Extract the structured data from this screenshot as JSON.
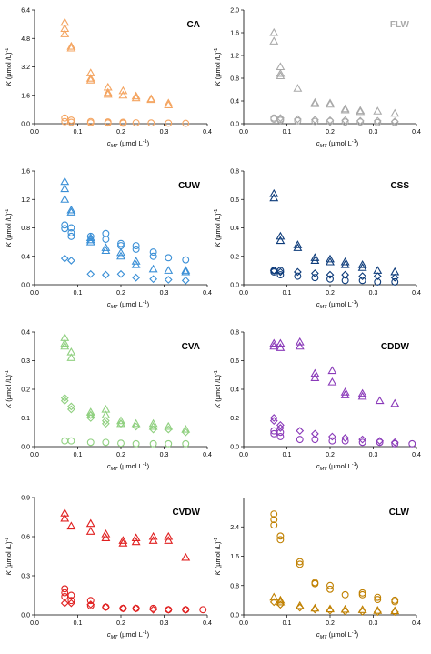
{
  "chart_data": [
    {
      "type": "scatter",
      "title": "CA",
      "title_color": "#000000",
      "ylabel_main": "K",
      "ylabel_unit": " (µmol /L)",
      "ylabel_sup": "-1",
      "xlabel_main": "c",
      "xlabel_sub": "MT",
      "xlabel_unit": " (µmol L",
      "xlabel_sup": "-1",
      "xlabel_close": ")",
      "xlim": [
        0,
        0.4
      ],
      "ylim": [
        0,
        6.4
      ],
      "xticks": [
        "0.0",
        "0.1",
        "0.2",
        "0.3",
        "0.4"
      ],
      "yticks": [
        "0.0",
        "1.6",
        "3.2",
        "4.8",
        "6.4"
      ],
      "series": [
        {
          "marker": "triangle",
          "color": "#f4a460",
          "x": [
            0.07,
            0.07,
            0.07,
            0.085,
            0.085,
            0.13,
            0.13,
            0.13,
            0.17,
            0.17,
            0.17,
            0.205,
            0.205,
            0.235,
            0.235,
            0.27,
            0.27,
            0.31,
            0.31
          ],
          "y": [
            5.7,
            5.35,
            5.05,
            4.35,
            4.25,
            2.85,
            2.55,
            2.45,
            2.05,
            1.75,
            1.65,
            1.85,
            1.6,
            1.55,
            1.45,
            1.4,
            1.35,
            1.15,
            1.05
          ]
        },
        {
          "marker": "circle",
          "color": "#f4a460",
          "x": [
            0.07,
            0.07,
            0.085,
            0.085,
            0.13,
            0.13,
            0.17,
            0.17,
            0.205,
            0.205,
            0.235,
            0.27,
            0.31,
            0.35
          ],
          "y": [
            0.32,
            0.12,
            0.2,
            0.08,
            0.12,
            0.05,
            0.1,
            0.04,
            0.08,
            0.03,
            0.05,
            0.04,
            0.03,
            0.02
          ]
        }
      ]
    },
    {
      "type": "scatter",
      "title": "FLW",
      "title_color": "#aaaaaa",
      "ylabel_main": "K",
      "ylabel_unit": " (µmol /L)",
      "ylabel_sup": "-1",
      "xlabel_main": "c",
      "xlabel_sub": "MT",
      "xlabel_unit": " (µmol L",
      "xlabel_sup": "-1",
      "xlabel_close": ")",
      "xlim": [
        0,
        0.4
      ],
      "ylim": [
        0,
        2.0
      ],
      "xticks": [
        "0.0",
        "0.1",
        "0.2",
        "0.3",
        "0.4"
      ],
      "yticks": [
        "0.0",
        "0.4",
        "0.8",
        "1.2",
        "1.6",
        "2.0"
      ],
      "series": [
        {
          "marker": "triangle",
          "color": "#a9a9a9",
          "x": [
            0.07,
            0.07,
            0.085,
            0.085,
            0.085,
            0.125,
            0.165,
            0.165,
            0.2,
            0.2,
            0.235,
            0.235,
            0.27,
            0.27,
            0.31,
            0.35
          ],
          "y": [
            1.6,
            1.45,
            1.0,
            0.88,
            0.84,
            0.62,
            0.37,
            0.35,
            0.36,
            0.34,
            0.26,
            0.24,
            0.23,
            0.21,
            0.22,
            0.18
          ]
        },
        {
          "marker": "circle",
          "color": "#a9a9a9",
          "x": [
            0.07,
            0.07,
            0.085,
            0.085,
            0.125,
            0.165,
            0.2,
            0.235,
            0.27,
            0.31,
            0.35
          ],
          "y": [
            0.1,
            0.08,
            0.08,
            0.06,
            0.05,
            0.04,
            0.04,
            0.03,
            0.03,
            0.02,
            0.02
          ]
        },
        {
          "marker": "diamond",
          "color": "#a9a9a9",
          "x": [
            0.085,
            0.125,
            0.165,
            0.2,
            0.235,
            0.27,
            0.31,
            0.35
          ],
          "y": [
            0.1,
            0.08,
            0.07,
            0.06,
            0.06,
            0.05,
            0.05,
            0.04
          ]
        }
      ]
    },
    {
      "type": "scatter",
      "title": "CUW",
      "title_color": "#000000",
      "ylabel_main": "K",
      "ylabel_unit": " (µmol /L)",
      "ylabel_sup": "-1",
      "xlabel_main": "c",
      "xlabel_sub": "MT",
      "xlabel_unit": " (µmol L",
      "xlabel_sup": "-1",
      "xlabel_close": ")",
      "xlim": [
        0,
        0.4
      ],
      "ylim": [
        0,
        1.6
      ],
      "xticks": [
        "0.0",
        "0.1",
        "0.2",
        "0.3",
        "0.4"
      ],
      "yticks": [
        "0.0",
        "0.4",
        "0.8",
        "1.2",
        "1.6"
      ],
      "series": [
        {
          "marker": "triangle",
          "color": "#3a8fd6",
          "x": [
            0.07,
            0.07,
            0.07,
            0.085,
            0.085,
            0.13,
            0.13,
            0.13,
            0.165,
            0.165,
            0.2,
            0.2,
            0.235,
            0.235,
            0.275,
            0.31,
            0.35,
            0.35
          ],
          "y": [
            1.45,
            1.35,
            1.2,
            1.05,
            1.02,
            0.66,
            0.63,
            0.6,
            0.52,
            0.48,
            0.45,
            0.4,
            0.33,
            0.28,
            0.22,
            0.2,
            0.2,
            0.18
          ]
        },
        {
          "marker": "circle",
          "color": "#3a8fd6",
          "x": [
            0.07,
            0.07,
            0.085,
            0.085,
            0.085,
            0.13,
            0.165,
            0.165,
            0.2,
            0.2,
            0.235,
            0.235,
            0.275,
            0.275,
            0.31,
            0.35
          ],
          "y": [
            0.84,
            0.79,
            0.8,
            0.73,
            0.68,
            0.68,
            0.72,
            0.64,
            0.58,
            0.55,
            0.55,
            0.5,
            0.46,
            0.4,
            0.38,
            0.35
          ]
        },
        {
          "marker": "diamond",
          "color": "#3a8fd6",
          "x": [
            0.07,
            0.085,
            0.13,
            0.165,
            0.2,
            0.235,
            0.275,
            0.31,
            0.35
          ],
          "y": [
            0.37,
            0.34,
            0.15,
            0.14,
            0.15,
            0.1,
            0.08,
            0.07,
            0.06
          ]
        }
      ]
    },
    {
      "type": "scatter",
      "title": "CSS",
      "title_color": "#000000",
      "ylabel_main": "K",
      "ylabel_unit": " (µmol /L)",
      "ylabel_sup": "-1",
      "xlabel_main": "c",
      "xlabel_sub": "MT",
      "xlabel_unit": " (µmol L",
      "xlabel_sup": "-1",
      "xlabel_close": ")",
      "xlim": [
        0,
        0.4
      ],
      "ylim": [
        0,
        0.8
      ],
      "xticks": [
        "0.0",
        "0.1",
        "0.2",
        "0.3",
        "0.4"
      ],
      "yticks": [
        "0.0",
        "0.2",
        "0.4",
        "0.6",
        "0.8"
      ],
      "series": [
        {
          "marker": "triangle",
          "color": "#0d3b7a",
          "x": [
            0.07,
            0.07,
            0.085,
            0.085,
            0.125,
            0.125,
            0.165,
            0.165,
            0.2,
            0.2,
            0.235,
            0.235,
            0.275,
            0.275,
            0.31,
            0.35
          ],
          "y": [
            0.64,
            0.61,
            0.34,
            0.31,
            0.28,
            0.26,
            0.19,
            0.17,
            0.18,
            0.16,
            0.16,
            0.14,
            0.14,
            0.12,
            0.1,
            0.09
          ]
        },
        {
          "marker": "circle",
          "color": "#0d3b7a",
          "x": [
            0.07,
            0.07,
            0.085,
            0.085,
            0.125,
            0.165,
            0.2,
            0.235,
            0.275,
            0.31,
            0.35
          ],
          "y": [
            0.1,
            0.09,
            0.1,
            0.07,
            0.06,
            0.05,
            0.04,
            0.03,
            0.03,
            0.02,
            0.02
          ]
        },
        {
          "marker": "diamond",
          "color": "#0d3b7a",
          "x": [
            0.07,
            0.085,
            0.125,
            0.165,
            0.2,
            0.235,
            0.275,
            0.31,
            0.35
          ],
          "y": [
            0.1,
            0.09,
            0.09,
            0.08,
            0.07,
            0.07,
            0.06,
            0.06,
            0.05
          ]
        }
      ]
    },
    {
      "type": "scatter",
      "title": "CVA",
      "title_color": "#000000",
      "ylabel_main": "K",
      "ylabel_unit": " (µmol /L)",
      "ylabel_sup": "-1",
      "xlabel_main": "c",
      "xlabel_sub": "MT",
      "xlabel_unit": " (µmol L",
      "xlabel_sup": "-1",
      "xlabel_close": ")",
      "xlim": [
        0,
        0.4
      ],
      "ylim": [
        0,
        0.4
      ],
      "xticks": [
        "0.0",
        "0.1",
        "0.2",
        "0.3",
        "0.4"
      ],
      "yticks": [
        "0.0",
        "0.1",
        "0.2",
        "0.3",
        "0.4"
      ],
      "series": [
        {
          "marker": "triangle",
          "color": "#90d080",
          "x": [
            0.07,
            0.07,
            0.07,
            0.085,
            0.085,
            0.13,
            0.13,
            0.165,
            0.165,
            0.2,
            0.2,
            0.235,
            0.275,
            0.275,
            0.31,
            0.35
          ],
          "y": [
            0.38,
            0.36,
            0.35,
            0.33,
            0.31,
            0.12,
            0.11,
            0.13,
            0.11,
            0.09,
            0.08,
            0.08,
            0.08,
            0.07,
            0.07,
            0.06
          ]
        },
        {
          "marker": "diamond",
          "color": "#90d080",
          "x": [
            0.07,
            0.07,
            0.085,
            0.085,
            0.13,
            0.13,
            0.165,
            0.165,
            0.2,
            0.235,
            0.275,
            0.31,
            0.35
          ],
          "y": [
            0.17,
            0.16,
            0.14,
            0.13,
            0.11,
            0.1,
            0.09,
            0.08,
            0.08,
            0.07,
            0.06,
            0.06,
            0.05
          ]
        },
        {
          "marker": "circle",
          "color": "#90d080",
          "x": [
            0.07,
            0.085,
            0.13,
            0.165,
            0.2,
            0.235,
            0.275,
            0.31,
            0.35
          ],
          "y": [
            0.02,
            0.02,
            0.015,
            0.015,
            0.012,
            0.01,
            0.01,
            0.01,
            0.01
          ]
        }
      ]
    },
    {
      "type": "scatter",
      "title": "CDDW",
      "title_color": "#000000",
      "ylabel_main": "K",
      "ylabel_unit": " (µmol /L)",
      "ylabel_sup": "-1",
      "xlabel_main": "c",
      "xlabel_sub": "MT",
      "xlabel_unit": " (µmol L",
      "xlabel_sup": "-1",
      "xlabel_close": ")",
      "xlim": [
        0,
        0.4
      ],
      "ylim": [
        0,
        0.8
      ],
      "xticks": [
        "0.0",
        "0.1",
        "0.2",
        "0.3",
        "0.4"
      ],
      "yticks": [
        "0.0",
        "0.2",
        "0.4",
        "0.6",
        "0.8"
      ],
      "series": [
        {
          "marker": "triangle",
          "color": "#8a3ab9",
          "x": [
            0.07,
            0.07,
            0.085,
            0.085,
            0.13,
            0.13,
            0.165,
            0.165,
            0.205,
            0.205,
            0.235,
            0.235,
            0.275,
            0.275,
            0.315,
            0.35
          ],
          "y": [
            0.72,
            0.7,
            0.72,
            0.69,
            0.73,
            0.7,
            0.51,
            0.48,
            0.53,
            0.45,
            0.38,
            0.36,
            0.37,
            0.35,
            0.32,
            0.3
          ]
        },
        {
          "marker": "diamond",
          "color": "#8a3ab9",
          "x": [
            0.07,
            0.07,
            0.085,
            0.085,
            0.13,
            0.165,
            0.205,
            0.235,
            0.275,
            0.315,
            0.35
          ],
          "y": [
            0.2,
            0.18,
            0.15,
            0.13,
            0.11,
            0.09,
            0.07,
            0.06,
            0.05,
            0.04,
            0.03
          ]
        },
        {
          "marker": "circle",
          "color": "#8a3ab9",
          "x": [
            0.07,
            0.07,
            0.085,
            0.085,
            0.13,
            0.165,
            0.205,
            0.235,
            0.275,
            0.315,
            0.35,
            0.39
          ],
          "y": [
            0.11,
            0.09,
            0.1,
            0.07,
            0.05,
            0.05,
            0.04,
            0.04,
            0.03,
            0.03,
            0.02,
            0.02
          ]
        }
      ]
    },
    {
      "type": "scatter",
      "title": "CVDW",
      "title_color": "#000000",
      "ylabel_main": "K",
      "ylabel_unit": " (µmol /L)",
      "ylabel_sup": "-1",
      "xlabel_main": "c",
      "xlabel_sub": "MT",
      "xlabel_unit": " (µmol L",
      "xlabel_sup": "-1",
      "xlabel_close": ")",
      "xlim": [
        0,
        0.4
      ],
      "ylim": [
        0,
        0.9
      ],
      "xticks": [
        "0.0",
        "0.1",
        "0.2",
        "0.3",
        "0.4"
      ],
      "yticks": [
        "0.0",
        "0.3",
        "0.6",
        "0.9"
      ],
      "series": [
        {
          "marker": "triangle",
          "color": "#e02020",
          "x": [
            0.07,
            0.07,
            0.085,
            0.13,
            0.13,
            0.165,
            0.165,
            0.205,
            0.205,
            0.235,
            0.235,
            0.275,
            0.275,
            0.31,
            0.31,
            0.35
          ],
          "y": [
            0.78,
            0.74,
            0.68,
            0.7,
            0.64,
            0.62,
            0.59,
            0.57,
            0.55,
            0.59,
            0.56,
            0.6,
            0.57,
            0.6,
            0.57,
            0.44
          ]
        },
        {
          "marker": "circle",
          "color": "#e02020",
          "x": [
            0.07,
            0.07,
            0.07,
            0.085,
            0.085,
            0.13,
            0.13,
            0.165,
            0.205,
            0.235,
            0.275,
            0.31,
            0.35,
            0.39
          ],
          "y": [
            0.2,
            0.17,
            0.14,
            0.15,
            0.11,
            0.11,
            0.07,
            0.06,
            0.05,
            0.05,
            0.05,
            0.04,
            0.04,
            0.04
          ]
        },
        {
          "marker": "diamond",
          "color": "#e02020",
          "x": [
            0.07,
            0.085,
            0.13,
            0.165,
            0.205,
            0.235,
            0.275,
            0.31,
            0.35
          ],
          "y": [
            0.09,
            0.09,
            0.08,
            0.06,
            0.05,
            0.05,
            0.04,
            0.04,
            0.04
          ]
        }
      ]
    },
    {
      "type": "scatter",
      "title": "CLW",
      "title_color": "#000000",
      "ylabel_main": "K",
      "ylabel_unit": " (µmol /L)",
      "ylabel_sup": "-1",
      "xlabel_main": "c",
      "xlabel_sub": "MT",
      "xlabel_unit": " (µmol L",
      "xlabel_sup": "-1",
      "xlabel_close": ")",
      "xlim": [
        0,
        0.4
      ],
      "ylim": [
        0,
        3.2
      ],
      "xticks": [
        "0.0",
        "0.1",
        "0.2",
        "0.3",
        "0.4"
      ],
      "yticks": [
        "0.0",
        "0.8",
        "1.6",
        "2.4"
      ],
      "series": [
        {
          "marker": "circle",
          "color": "#c08000",
          "x": [
            0.07,
            0.07,
            0.07,
            0.085,
            0.085,
            0.13,
            0.13,
            0.165,
            0.165,
            0.2,
            0.2,
            0.235,
            0.275,
            0.275,
            0.31,
            0.31,
            0.35,
            0.35
          ],
          "y": [
            2.75,
            2.6,
            2.45,
            2.15,
            2.05,
            1.45,
            1.38,
            0.88,
            0.85,
            0.8,
            0.7,
            0.55,
            0.6,
            0.55,
            0.48,
            0.42,
            0.4,
            0.36
          ]
        },
        {
          "marker": "triangle",
          "color": "#c08000",
          "x": [
            0.07,
            0.085,
            0.085,
            0.13,
            0.165,
            0.2,
            0.235,
            0.275,
            0.31,
            0.35
          ],
          "y": [
            0.48,
            0.4,
            0.35,
            0.25,
            0.18,
            0.16,
            0.15,
            0.14,
            0.12,
            0.11
          ]
        },
        {
          "marker": "diamond",
          "color": "#c08000",
          "x": [
            0.07,
            0.085,
            0.13,
            0.165,
            0.2,
            0.235,
            0.275,
            0.31,
            0.35
          ],
          "y": [
            0.35,
            0.28,
            0.2,
            0.15,
            0.12,
            0.1,
            0.09,
            0.08,
            0.08
          ]
        }
      ]
    }
  ]
}
